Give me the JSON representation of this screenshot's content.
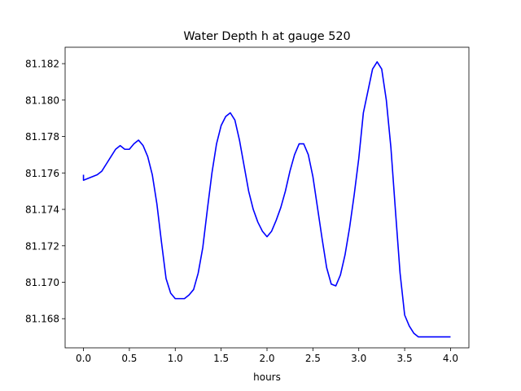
{
  "chart_data": {
    "type": "line",
    "title": "Water Depth h at gauge 520",
    "xlabel": "hours",
    "ylabel": "",
    "xlim": [
      -0.2,
      4.2
    ],
    "ylim": [
      81.1664,
      81.1829
    ],
    "grid": false,
    "x_ticks": [
      0.0,
      0.5,
      1.0,
      1.5,
      2.0,
      2.5,
      3.0,
      3.5,
      4.0
    ],
    "x_tick_labels": [
      "0.0",
      "0.5",
      "1.0",
      "1.5",
      "2.0",
      "2.5",
      "3.0",
      "3.5",
      "4.0"
    ],
    "y_ticks": [
      81.168,
      81.17,
      81.172,
      81.174,
      81.176,
      81.178,
      81.18,
      81.182
    ],
    "y_tick_labels": [
      "81.168",
      "81.170",
      "81.172",
      "81.174",
      "81.176",
      "81.178",
      "81.180",
      "81.182"
    ],
    "series": [
      {
        "color": "#0000ff",
        "x": [
          0.0,
          0.0,
          0.05,
          0.1,
          0.15,
          0.2,
          0.25,
          0.3,
          0.35,
          0.4,
          0.45,
          0.5,
          0.55,
          0.6,
          0.65,
          0.7,
          0.75,
          0.8,
          0.85,
          0.9,
          0.95,
          1.0,
          1.05,
          1.1,
          1.15,
          1.2,
          1.25,
          1.3,
          1.35,
          1.4,
          1.45,
          1.5,
          1.55,
          1.6,
          1.65,
          1.7,
          1.75,
          1.8,
          1.85,
          1.9,
          1.95,
          2.0,
          2.05,
          2.1,
          2.15,
          2.2,
          2.25,
          2.3,
          2.35,
          2.4,
          2.45,
          2.5,
          2.55,
          2.6,
          2.65,
          2.7,
          2.75,
          2.8,
          2.85,
          2.9,
          2.95,
          3.0,
          3.05,
          3.1,
          3.15,
          3.2,
          3.25,
          3.3,
          3.35,
          3.4,
          3.45,
          3.5,
          3.55,
          3.6,
          3.65,
          3.7,
          3.75,
          3.8,
          3.85,
          3.9,
          3.95,
          4.0
        ],
        "y": [
          81.1759,
          81.1756,
          81.1757,
          81.1758,
          81.1759,
          81.1761,
          81.1765,
          81.1769,
          81.1773,
          81.1775,
          81.1773,
          81.1773,
          81.1776,
          81.1778,
          81.1775,
          81.1769,
          81.1759,
          81.1743,
          81.1722,
          81.1702,
          81.1694,
          81.1691,
          81.1691,
          81.1691,
          81.1693,
          81.1696,
          81.1705,
          81.1719,
          81.174,
          81.176,
          81.1776,
          81.1786,
          81.1791,
          81.1793,
          81.1789,
          81.1778,
          81.1764,
          81.175,
          81.174,
          81.1733,
          81.1728,
          81.1725,
          81.1728,
          81.1734,
          81.1741,
          81.175,
          81.1761,
          81.177,
          81.1776,
          81.1776,
          81.177,
          81.1758,
          81.1741,
          81.1724,
          81.1708,
          81.1699,
          81.1698,
          81.1704,
          81.1715,
          81.173,
          81.1748,
          81.1768,
          81.1793,
          81.1805,
          81.1817,
          81.1821,
          81.1817,
          81.18,
          81.1774,
          81.1739,
          81.1705,
          81.1682,
          81.1676,
          81.1672,
          81.167,
          81.167,
          81.167,
          81.167,
          81.167,
          81.167,
          81.167,
          81.167
        ]
      }
    ]
  }
}
